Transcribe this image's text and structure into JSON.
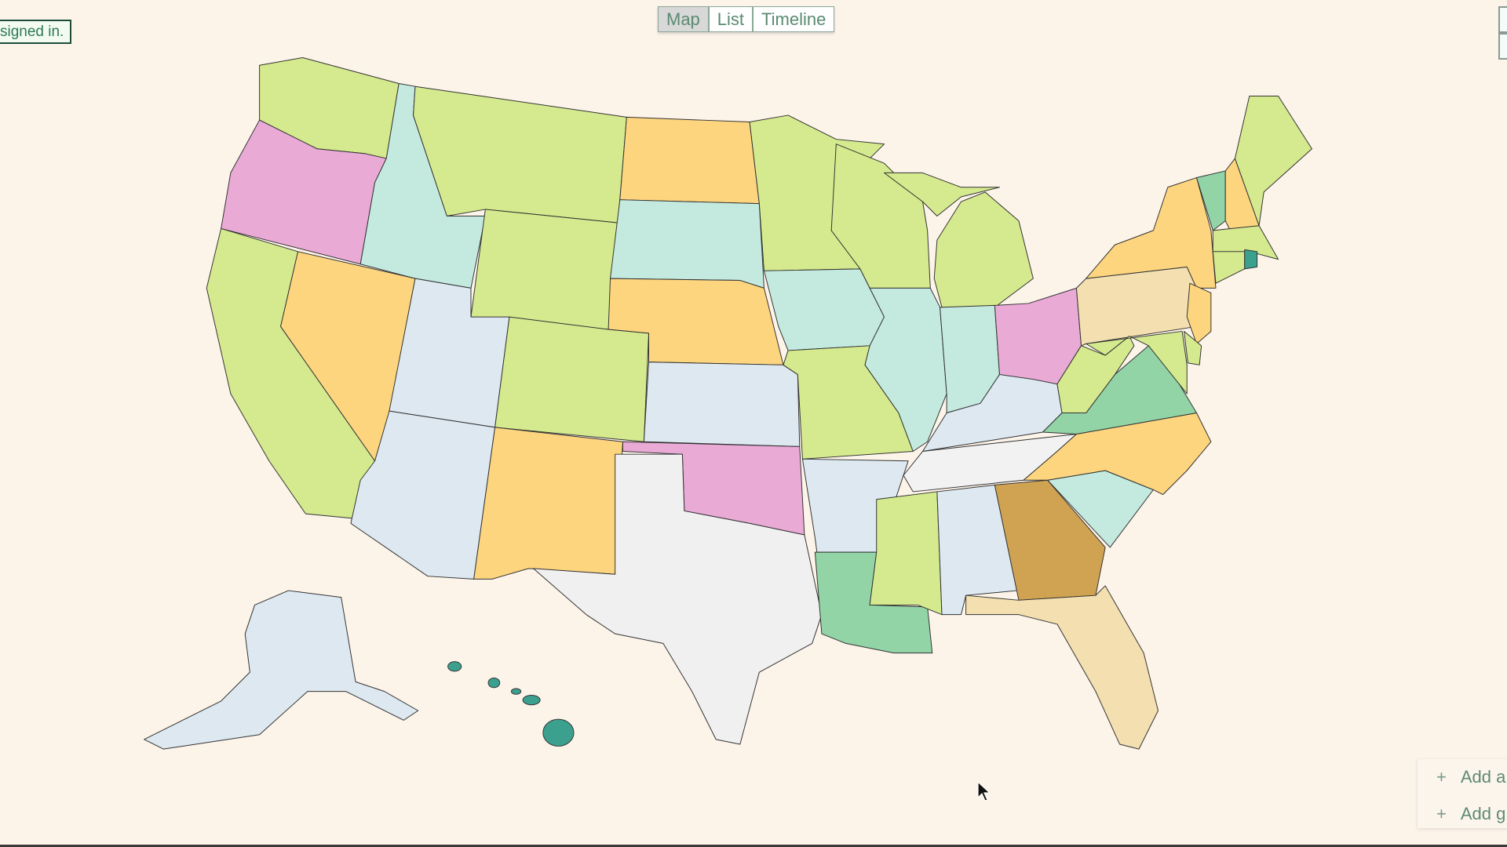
{
  "status": {
    "signed_in_text": "signed in."
  },
  "view_toggle": {
    "options": [
      "Map",
      "List",
      "Timeline"
    ],
    "selected": "Map"
  },
  "panel": {
    "items": [
      {
        "icon": "plus-icon",
        "label": "Add a"
      },
      {
        "icon": "plus-icon",
        "label": "Add g"
      }
    ]
  },
  "colors": {
    "background": "#fcf3e9",
    "accent": "#5a8a72"
  },
  "map": {
    "regions": [
      {
        "id": "WA",
        "fill": "#d5ea8e"
      },
      {
        "id": "OR",
        "fill": "#e9aad6"
      },
      {
        "id": "CA",
        "fill": "#d5ea8e"
      },
      {
        "id": "NV",
        "fill": "#fdd57f"
      },
      {
        "id": "ID",
        "fill": "#c4eadf"
      },
      {
        "id": "MT",
        "fill": "#d5ea8e"
      },
      {
        "id": "WY",
        "fill": "#d5ea8e"
      },
      {
        "id": "UT",
        "fill": "#dde8f0"
      },
      {
        "id": "AZ",
        "fill": "#dde8f0"
      },
      {
        "id": "CO",
        "fill": "#d5ea8e"
      },
      {
        "id": "NM",
        "fill": "#fdd57f"
      },
      {
        "id": "ND",
        "fill": "#fdd57f"
      },
      {
        "id": "SD",
        "fill": "#c4eadf"
      },
      {
        "id": "NE",
        "fill": "#fdd57f"
      },
      {
        "id": "KS",
        "fill": "#dde8f0"
      },
      {
        "id": "OK",
        "fill": "#e9aad6"
      },
      {
        "id": "TX",
        "fill": "#f0f0f0"
      },
      {
        "id": "MN",
        "fill": "#d5ea8e"
      },
      {
        "id": "IA",
        "fill": "#c4eadf"
      },
      {
        "id": "MO",
        "fill": "#d5ea8e"
      },
      {
        "id": "AR",
        "fill": "#dde8f0"
      },
      {
        "id": "LA",
        "fill": "#92d4a6"
      },
      {
        "id": "WI",
        "fill": "#d5ea8e"
      },
      {
        "id": "IL",
        "fill": "#c4eadf"
      },
      {
        "id": "MI",
        "fill": "#d5ea8e"
      },
      {
        "id": "MI-UP",
        "fill": "#d5ea8e"
      },
      {
        "id": "IN",
        "fill": "#c4eadf"
      },
      {
        "id": "OH",
        "fill": "#e9aad6"
      },
      {
        "id": "KY",
        "fill": "#dde8f0"
      },
      {
        "id": "TN",
        "fill": "#f2f2f2"
      },
      {
        "id": "MS",
        "fill": "#d5ea8e"
      },
      {
        "id": "AL",
        "fill": "#dde8f0"
      },
      {
        "id": "GA",
        "fill": "#d0a352"
      },
      {
        "id": "FL",
        "fill": "#f3dfb0"
      },
      {
        "id": "SC",
        "fill": "#c4eadf"
      },
      {
        "id": "NC",
        "fill": "#fdd57f"
      },
      {
        "id": "VA",
        "fill": "#92d4a6"
      },
      {
        "id": "WV",
        "fill": "#d5ea8e"
      },
      {
        "id": "PA",
        "fill": "#f3dfb0"
      },
      {
        "id": "NY",
        "fill": "#fdd57f"
      },
      {
        "id": "NJ",
        "fill": "#fdd57f"
      },
      {
        "id": "MD",
        "fill": "#d5ea8e"
      },
      {
        "id": "DE",
        "fill": "#d5ea8e"
      },
      {
        "id": "VT",
        "fill": "#92d4a6"
      },
      {
        "id": "NH",
        "fill": "#fdd57f"
      },
      {
        "id": "ME",
        "fill": "#d5ea8e"
      },
      {
        "id": "MA",
        "fill": "#d5ea8e"
      },
      {
        "id": "CT",
        "fill": "#d5ea8e"
      },
      {
        "id": "RI",
        "fill": "#3ba08e"
      },
      {
        "id": "AK",
        "fill": "#dde8f0"
      },
      {
        "id": "HI",
        "fill": "#3ba08e"
      }
    ]
  }
}
